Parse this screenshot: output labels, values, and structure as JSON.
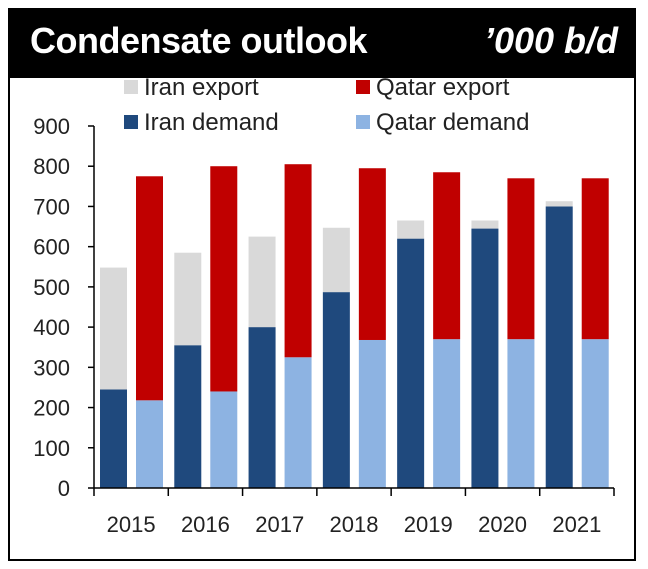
{
  "header": {
    "title": "Condensate outlook",
    "unit": "’000 b/d"
  },
  "colors": {
    "iran_export": "#d9d9d9",
    "iran_demand": "#1f497d",
    "qatar_export": "#c00000",
    "qatar_demand": "#8db3e2",
    "header_bg": "#000000"
  },
  "chart_data": {
    "type": "bar",
    "stacked": true,
    "categories": [
      "2015",
      "2016",
      "2017",
      "2018",
      "2019",
      "2020",
      "2021"
    ],
    "ylim": [
      0,
      900
    ],
    "yticks": [
      0,
      100,
      200,
      300,
      400,
      500,
      600,
      700,
      800,
      900
    ],
    "legend_position": "top",
    "iran": {
      "demand": [
        245,
        355,
        400,
        487,
        620,
        645,
        700
      ],
      "export": [
        303,
        230,
        225,
        160,
        45,
        20,
        13
      ]
    },
    "qatar": {
      "demand": [
        218,
        240,
        325,
        368,
        370,
        370,
        370
      ],
      "export": [
        557,
        560,
        480,
        427,
        415,
        400,
        400
      ]
    },
    "legend": [
      {
        "key": "iran_export",
        "label": "Iran export"
      },
      {
        "key": "qatar_export",
        "label": "Qatar export"
      },
      {
        "key": "iran_demand",
        "label": "Iran demand"
      },
      {
        "key": "qatar_demand",
        "label": "Qatar demand"
      }
    ]
  }
}
